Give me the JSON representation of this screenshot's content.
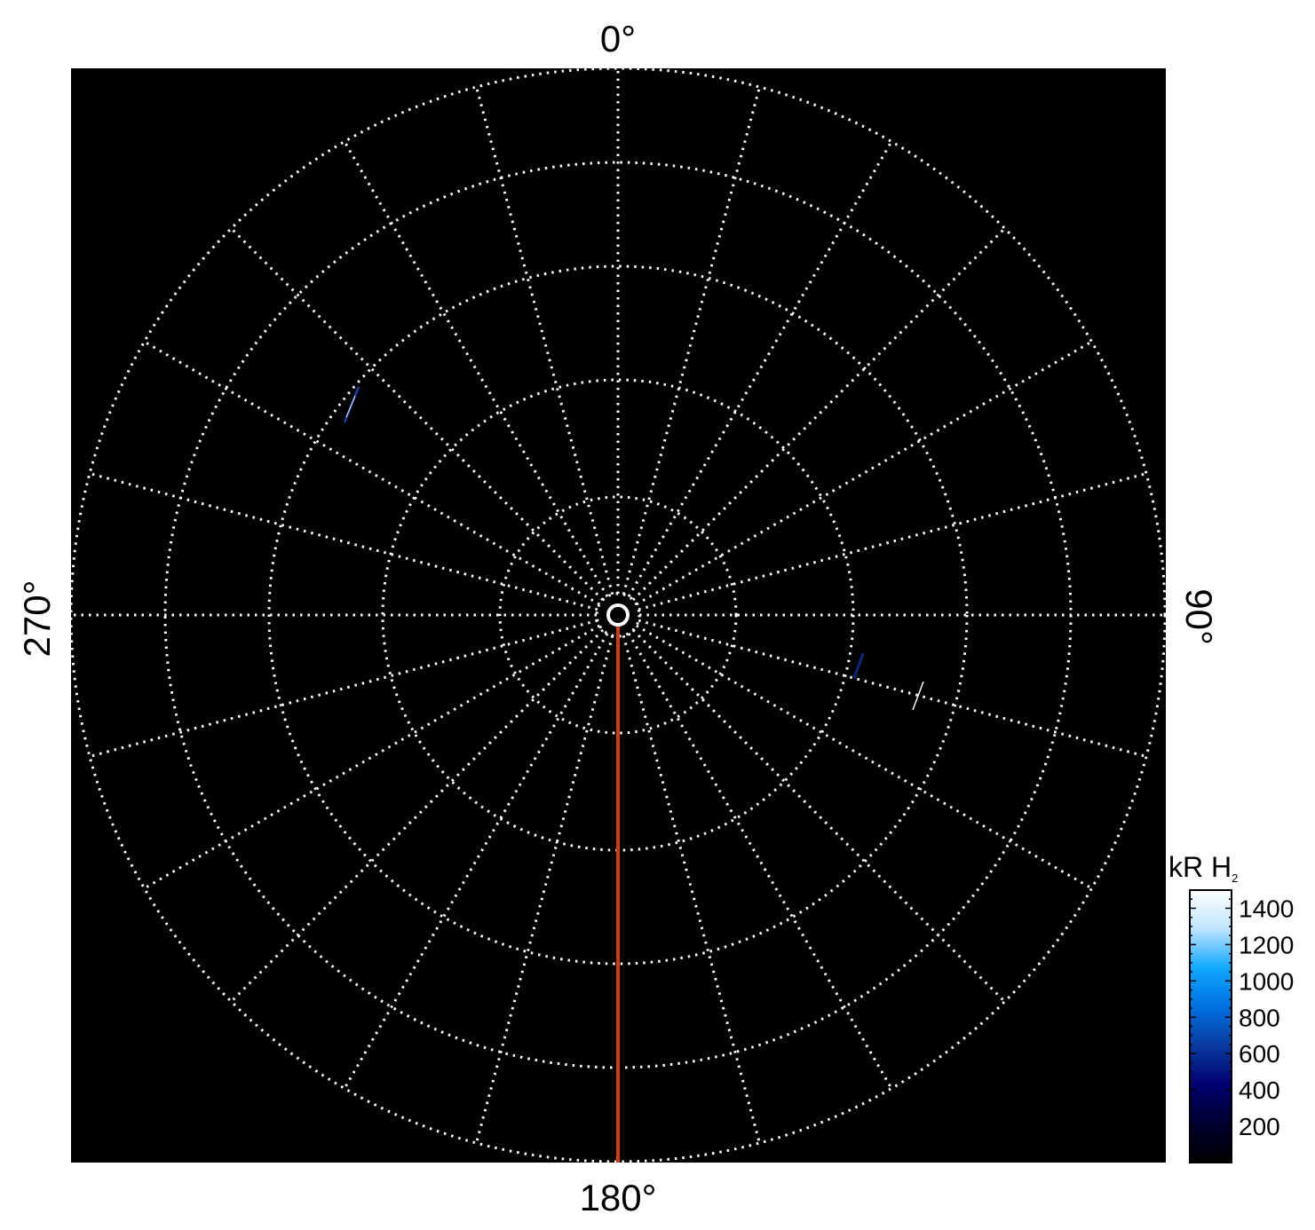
{
  "chart_data": {
    "type": "heatmap",
    "projection": "polar",
    "angle_labels": [
      {
        "angle": 0,
        "label": "0°"
      },
      {
        "angle": 90,
        "label": "90°"
      },
      {
        "angle": 180,
        "label": "180°"
      },
      {
        "angle": 270,
        "label": "270°"
      }
    ],
    "grid": true,
    "grid_style": "dotted",
    "radial_line_spacing_deg": 15,
    "grid_circles": 5,
    "background_color": "#000000",
    "grid_color": "#ffffff",
    "marker_line": {
      "angle": 180,
      "color": "#d23c14"
    },
    "colorbar": {
      "label": "kR H",
      "label_subscript": "2",
      "range": [
        0,
        1500
      ],
      "ticks": [
        200,
        400,
        600,
        800,
        1000,
        1200,
        1400
      ],
      "tick_labels": [
        "200",
        "400",
        "600",
        "800",
        "1000",
        "1200",
        "1400"
      ],
      "colormap": [
        "#000000",
        "#000030",
        "#000070",
        "#0a3aa0",
        "#0070e0",
        "#10a8ff",
        "#bfe4ff",
        "#ffffff"
      ],
      "placement": "bottom-right"
    }
  }
}
